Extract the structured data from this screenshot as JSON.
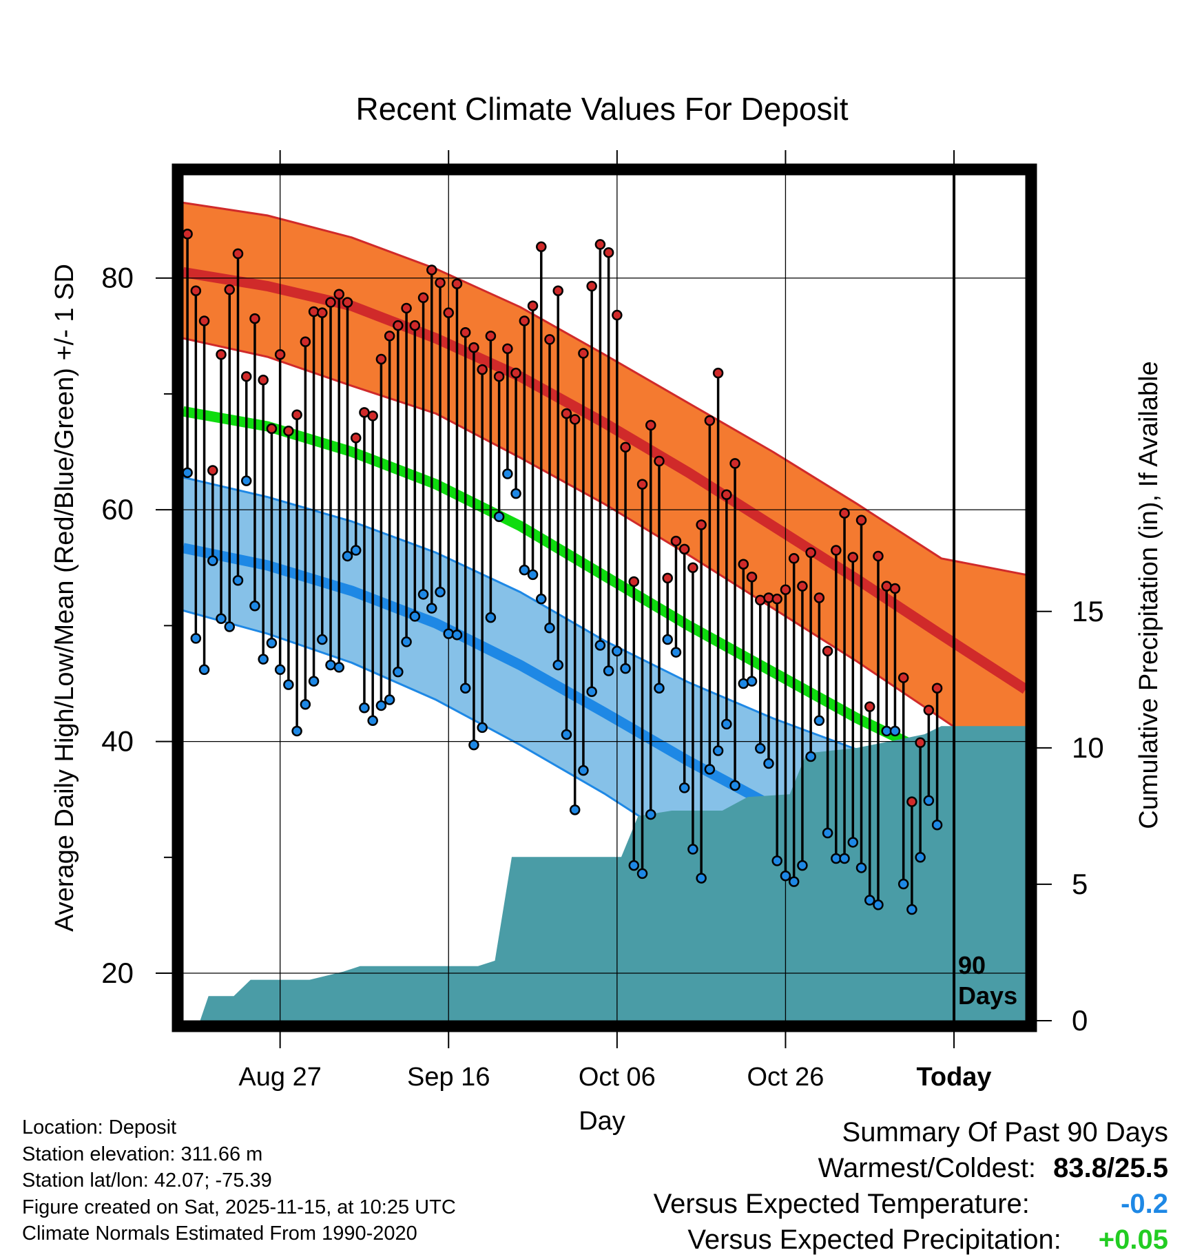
{
  "chart_data": {
    "type": "line",
    "title": "Recent Climate Values For Deposit",
    "xlabel": "Day",
    "ylabel": "Average Daily High/Low/Mean (Red/Blue/Green) +/- 1 SD",
    "y2label": "Cumulative Precipitation (in), If Available",
    "xlim": [
      0,
      100
    ],
    "ylim": [
      15.9,
      88.9
    ],
    "y2lim": [
      0,
      31
    ],
    "yticks": [
      20,
      40,
      60,
      80
    ],
    "y2ticks": [
      0,
      5,
      10,
      15
    ],
    "xticks": [
      {
        "day": 11.5,
        "label": "Aug 27"
      },
      {
        "day": 31.5,
        "label": "Sep 16"
      },
      {
        "day": 51.5,
        "label": "Oct 06"
      },
      {
        "day": 71.5,
        "label": "Oct 26"
      },
      {
        "day": 91.5,
        "label": "Today"
      }
    ],
    "today_day": 91.5,
    "today_label": "90 Days",
    "series": [
      {
        "name": "Normal High",
        "color": "#d02a2a",
        "days": [
          0,
          10,
          20,
          30,
          40,
          50,
          60,
          70,
          80,
          90,
          100
        ],
        "values": [
          80.5,
          79.3,
          77.6,
          74.8,
          71.5,
          67.5,
          63.2,
          58.6,
          54.0,
          49.2,
          44.5
        ]
      },
      {
        "name": "Normal High +1 SD",
        "color": "#d02a2a",
        "days": [
          0,
          10,
          20,
          30,
          40,
          50,
          60,
          70,
          80,
          90,
          100
        ],
        "values": [
          86.5,
          85.4,
          83.5,
          80.8,
          77.5,
          73.4,
          69.2,
          65.0,
          60.5,
          55.8,
          54.4
        ]
      },
      {
        "name": "Normal High -1 SD",
        "color": "#d02a2a",
        "days": [
          0,
          10,
          20,
          30,
          40,
          50,
          60,
          70,
          80,
          90,
          100
        ],
        "values": [
          74.8,
          73.2,
          70.7,
          68.3,
          64.5,
          60.5,
          56.1,
          51.5,
          46.9,
          42.0,
          37.1
        ]
      },
      {
        "name": "Normal Mean",
        "color": "#0fdc0f",
        "days": [
          0,
          10,
          20,
          30,
          40,
          50,
          60,
          70,
          80,
          90,
          100
        ],
        "values": [
          68.5,
          67.2,
          65.0,
          62.2,
          58.6,
          54.3,
          50.0,
          46.0,
          42.0,
          38.5,
          35.5
        ]
      },
      {
        "name": "Normal Low",
        "color": "#1e88e5",
        "days": [
          0,
          10,
          20,
          30,
          40,
          50,
          60,
          70,
          80,
          90,
          100
        ],
        "values": [
          56.7,
          55.2,
          53.0,
          50.2,
          46.6,
          42.5,
          38.3,
          34.4,
          30.7,
          27.3,
          24.0
        ]
      },
      {
        "name": "Normal Low +1 SD",
        "color": "#1e88e5",
        "days": [
          0,
          10,
          20,
          30,
          40,
          50,
          60,
          70,
          80,
          90,
          100
        ],
        "values": [
          62.8,
          61.1,
          59.0,
          56.3,
          52.9,
          48.7,
          45.1,
          42.0,
          39.3,
          36.5,
          35.1
        ]
      },
      {
        "name": "Normal Low -1 SD",
        "color": "#1e88e5",
        "days": [
          0,
          10,
          20,
          30,
          40,
          50,
          60,
          70,
          80,
          90,
          100
        ],
        "values": [
          51.3,
          49.3,
          46.8,
          43.6,
          39.7,
          35.5,
          30.8,
          27.0,
          22.0,
          18.5,
          16.2
        ]
      }
    ],
    "highs": [
      83.8,
      78.9,
      76.3,
      63.4,
      73.4,
      79.0,
      82.1,
      71.5,
      76.5,
      71.2,
      67.0,
      73.4,
      66.8,
      68.2,
      74.5,
      77.1,
      77.0,
      77.9,
      78.6,
      77.9,
      66.2,
      68.4,
      68.1,
      73.0,
      75.0,
      75.9,
      77.4,
      75.9,
      78.3,
      80.7,
      79.6,
      77.0,
      79.5,
      75.3,
      74.0,
      72.1,
      75.0,
      71.5,
      73.9,
      71.8,
      76.3,
      77.6,
      82.7,
      74.7,
      78.9,
      68.3,
      67.8,
      73.5,
      79.3,
      82.9,
      82.2,
      76.8,
      65.4,
      53.8,
      62.2,
      67.3,
      64.2,
      54.1,
      57.3,
      56.6,
      55.0,
      58.7,
      67.7,
      71.8,
      61.3,
      64.0,
      55.3,
      54.2,
      52.2,
      52.4,
      52.3,
      53.1,
      55.8,
      53.4,
      56.3,
      52.4,
      47.8,
      56.5,
      59.7,
      55.9,
      59.1,
      43.0,
      56.0,
      53.4,
      53.2,
      45.5,
      34.8,
      39.9,
      42.7,
      44.6
    ],
    "lows": [
      63.2,
      48.9,
      46.2,
      55.6,
      50.6,
      49.9,
      53.9,
      62.5,
      51.7,
      47.1,
      48.5,
      46.2,
      44.9,
      40.9,
      43.2,
      45.2,
      48.8,
      46.6,
      46.4,
      56.0,
      56.5,
      42.9,
      41.8,
      43.1,
      43.6,
      46.0,
      48.6,
      50.8,
      52.7,
      51.5,
      52.9,
      49.3,
      49.2,
      44.6,
      39.7,
      41.2,
      50.7,
      59.4,
      63.1,
      61.4,
      54.8,
      54.4,
      52.3,
      49.8,
      46.6,
      40.6,
      34.1,
      37.5,
      44.3,
      48.3,
      46.1,
      47.8,
      46.3,
      29.3,
      28.6,
      33.7,
      44.6,
      48.8,
      47.7,
      36.0,
      30.7,
      28.2,
      37.6,
      39.2,
      41.5,
      36.2,
      45.0,
      45.2,
      39.4,
      38.1,
      29.7,
      28.4,
      27.9,
      29.3,
      38.7,
      41.8,
      32.1,
      29.9,
      29.9,
      31.3,
      29.1,
      26.3,
      25.9,
      40.9,
      40.9,
      27.7,
      25.5,
      30.0,
      34.9,
      32.8
    ],
    "precip": {
      "days": [
        0,
        2,
        3,
        6,
        8,
        9,
        15,
        19,
        21,
        35,
        37,
        39,
        42,
        50,
        52,
        54,
        58,
        64,
        67,
        72,
        74,
        80,
        88,
        90,
        100
      ],
      "values": [
        0,
        0,
        0.9,
        0.9,
        1.5,
        1.5,
        1.5,
        1.8,
        2.0,
        2.0,
        2.2,
        6.0,
        6.0,
        6.0,
        6.0,
        7.5,
        7.7,
        7.7,
        8.2,
        8.3,
        9.8,
        10.0,
        10.5,
        10.8,
        10.8
      ]
    }
  },
  "metadata": {
    "location": "Location: Deposit",
    "elevation": "Station elevation: 311.66 m",
    "latlon": "Station lat/lon: 42.07; -75.39",
    "created": "Figure created on Sat, 2025-11-15, at 10:25 UTC",
    "normals": "Climate Normals Estimated From 1990-2020"
  },
  "summary": {
    "title": "Summary Of Past 90 Days",
    "warmest_coldest_label": "Warmest/Coldest:",
    "warmest_coldest_value": "83.8/25.5",
    "temp_label": "Versus Expected Temperature:",
    "temp_value": "-0.2",
    "temp_color": "#1e88e5",
    "precip_label": "Versus Expected Precipitation:",
    "precip_value": "+0.05",
    "precip_color": "#22cc22"
  },
  "colors": {
    "high_band": "#f47a30",
    "high_line": "#d02a2a",
    "mean_line": "#0fdc0f",
    "low_band": "#86c1e8",
    "low_line": "#1e88e5",
    "precip_fill": "#4a9ca6"
  }
}
